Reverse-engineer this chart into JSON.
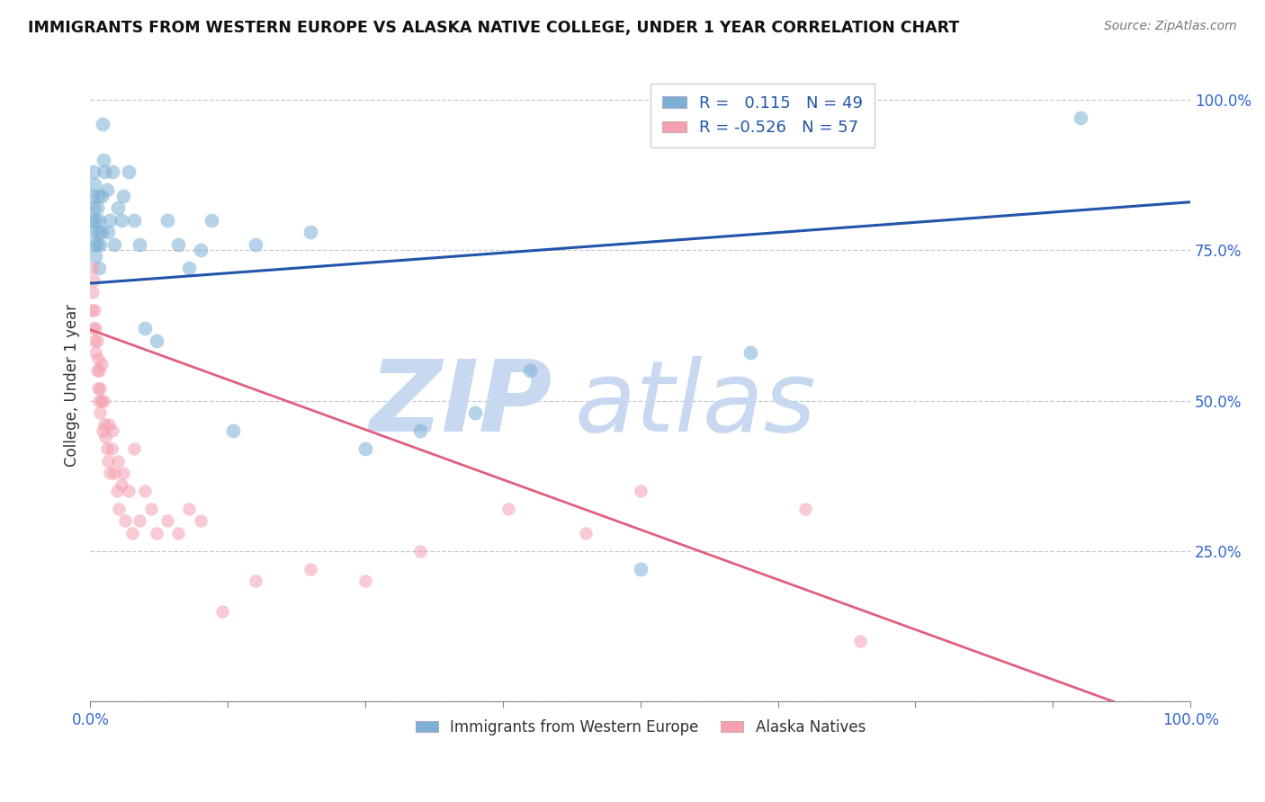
{
  "title": "IMMIGRANTS FROM WESTERN EUROPE VS ALASKA NATIVE COLLEGE, UNDER 1 YEAR CORRELATION CHART",
  "source": "Source: ZipAtlas.com",
  "ylabel": "College, Under 1 year",
  "watermark_zip": "ZIP",
  "watermark_atlas": "atlas",
  "legend_label1": "Immigrants from Western Europe",
  "legend_label2": "Alaska Natives",
  "R1": "0.115",
  "N1": "49",
  "R2": "-0.526",
  "N2": "57",
  "color_blue": "#7BAFD4",
  "color_pink": "#F4A0B0",
  "color_blue_line": "#2255AA",
  "color_pink_line": "#E06080",
  "blue_x": [
    0.001,
    0.002,
    0.002,
    0.003,
    0.003,
    0.004,
    0.004,
    0.005,
    0.005,
    0.006,
    0.006,
    0.007,
    0.007,
    0.008,
    0.008,
    0.009,
    0.01,
    0.01,
    0.011,
    0.012,
    0.013,
    0.015,
    0.016,
    0.018,
    0.02,
    0.022,
    0.025,
    0.028,
    0.03,
    0.035,
    0.04,
    0.045,
    0.05,
    0.06,
    0.07,
    0.08,
    0.09,
    0.1,
    0.11,
    0.13,
    0.15,
    0.2,
    0.25,
    0.3,
    0.35,
    0.4,
    0.5,
    0.6,
    0.9
  ],
  "blue_y": [
    0.8,
    0.84,
    0.78,
    0.88,
    0.82,
    0.86,
    0.76,
    0.8,
    0.74,
    0.82,
    0.76,
    0.84,
    0.78,
    0.8,
    0.72,
    0.76,
    0.84,
    0.78,
    0.96,
    0.9,
    0.88,
    0.85,
    0.78,
    0.8,
    0.88,
    0.76,
    0.82,
    0.8,
    0.84,
    0.88,
    0.8,
    0.76,
    0.62,
    0.6,
    0.8,
    0.76,
    0.72,
    0.75,
    0.8,
    0.45,
    0.76,
    0.78,
    0.42,
    0.45,
    0.48,
    0.55,
    0.22,
    0.58,
    0.97
  ],
  "pink_x": [
    0.001,
    0.002,
    0.002,
    0.003,
    0.003,
    0.004,
    0.004,
    0.005,
    0.005,
    0.006,
    0.006,
    0.007,
    0.007,
    0.008,
    0.008,
    0.009,
    0.009,
    0.01,
    0.01,
    0.011,
    0.012,
    0.013,
    0.014,
    0.015,
    0.016,
    0.017,
    0.018,
    0.019,
    0.02,
    0.022,
    0.024,
    0.025,
    0.026,
    0.028,
    0.03,
    0.032,
    0.035,
    0.038,
    0.04,
    0.045,
    0.05,
    0.055,
    0.06,
    0.07,
    0.08,
    0.09,
    0.1,
    0.12,
    0.15,
    0.2,
    0.25,
    0.3,
    0.38,
    0.45,
    0.5,
    0.65,
    0.7
  ],
  "pink_y": [
    0.65,
    0.68,
    0.72,
    0.7,
    0.62,
    0.65,
    0.6,
    0.62,
    0.58,
    0.6,
    0.55,
    0.52,
    0.57,
    0.5,
    0.55,
    0.48,
    0.52,
    0.5,
    0.56,
    0.45,
    0.5,
    0.46,
    0.44,
    0.42,
    0.4,
    0.46,
    0.38,
    0.42,
    0.45,
    0.38,
    0.35,
    0.4,
    0.32,
    0.36,
    0.38,
    0.3,
    0.35,
    0.28,
    0.42,
    0.3,
    0.35,
    0.32,
    0.28,
    0.3,
    0.28,
    0.32,
    0.3,
    0.15,
    0.2,
    0.22,
    0.2,
    0.25,
    0.32,
    0.28,
    0.35,
    0.32,
    0.1
  ],
  "xlim": [
    0.0,
    1.0
  ],
  "ylim": [
    0.0,
    1.05
  ],
  "blue_line_x0": 0.0,
  "blue_line_x1": 1.0,
  "blue_line_y0": 0.695,
  "blue_line_y1": 0.83,
  "pink_line_x0": 0.0,
  "pink_line_x1": 0.93,
  "pink_line_y0": 0.618,
  "pink_line_y1": 0.0
}
